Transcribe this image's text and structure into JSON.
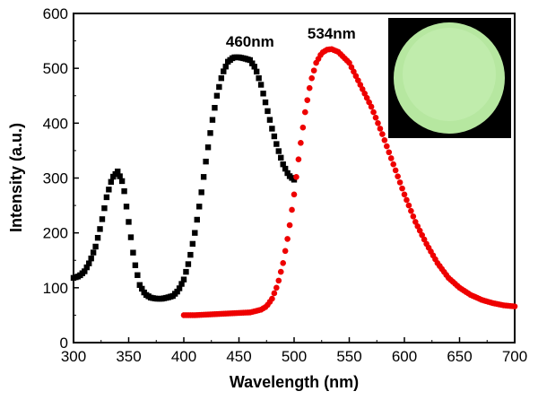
{
  "chart_data": {
    "type": "scatter",
    "title": "",
    "xlabel": "Wavelength (nm)",
    "ylabel": "Intensity (a.u.)",
    "xlim": [
      300,
      700
    ],
    "ylim": [
      0,
      600
    ],
    "xticks": [
      300,
      350,
      400,
      450,
      500,
      550,
      600,
      650,
      700
    ],
    "yticks": [
      0,
      100,
      200,
      300,
      400,
      500,
      600
    ],
    "grid": false,
    "legend": "none",
    "annotations": [
      {
        "text": "460nm",
        "x": 460,
        "y": 520
      },
      {
        "text": "534nm",
        "x": 534,
        "y": 535
      }
    ],
    "inset": {
      "description": "photo of glowing green sample",
      "color": "#b6e7a0"
    },
    "series": [
      {
        "color": "#000000",
        "marker": "square",
        "x": [
          300,
          305,
          310,
          315,
          320,
          325,
          330,
          335,
          340,
          345,
          350,
          355,
          360,
          365,
          370,
          375,
          380,
          385,
          390,
          395,
          400,
          405,
          410,
          415,
          420,
          425,
          430,
          435,
          440,
          445,
          450,
          455,
          460,
          465,
          470,
          475,
          480,
          485,
          490,
          495,
          500
        ],
        "y": [
          118,
          121,
          130,
          148,
          175,
          215,
          265,
          300,
          312,
          290,
          220,
          150,
          105,
          88,
          82,
          80,
          80,
          82,
          85,
          95,
          115,
          150,
          200,
          260,
          330,
          395,
          450,
          490,
          512,
          520,
          520,
          518,
          515,
          500,
          470,
          430,
          390,
          355,
          325,
          305,
          297
        ]
      },
      {
        "color": "#ee0000",
        "marker": "circle",
        "x": [
          400,
          410,
          420,
          430,
          440,
          450,
          460,
          470,
          475,
          480,
          485,
          490,
          495,
          500,
          505,
          510,
          515,
          520,
          525,
          530,
          534,
          540,
          550,
          560,
          570,
          580,
          590,
          600,
          610,
          620,
          630,
          640,
          650,
          660,
          670,
          680,
          690,
          700
        ],
        "y": [
          50,
          50,
          51,
          52,
          53,
          54,
          55,
          60,
          66,
          80,
          105,
          145,
          200,
          270,
          350,
          420,
          475,
          510,
          528,
          534,
          535,
          530,
          510,
          470,
          430,
          380,
          325,
          270,
          220,
          180,
          145,
          118,
          100,
          87,
          78,
          72,
          68,
          66
        ]
      }
    ]
  }
}
